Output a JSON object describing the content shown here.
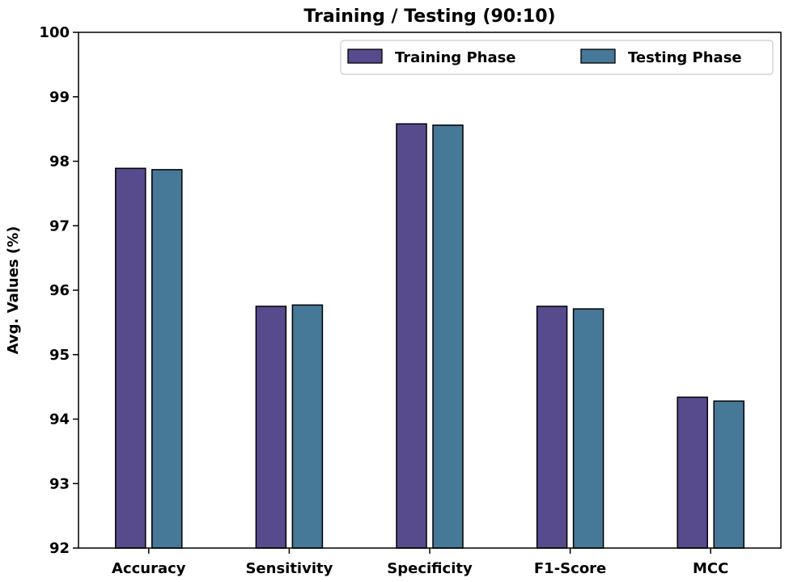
{
  "chart_data": {
    "type": "bar",
    "title": "Training / Testing (90:10)",
    "xlabel": "",
    "ylabel": "Avg. Values (%)",
    "ylim": [
      92,
      100
    ],
    "yticks": [
      92,
      93,
      94,
      95,
      96,
      97,
      98,
      99,
      100
    ],
    "categories": [
      "Accuracy",
      "Sensitivity",
      "Specificity",
      "F1-Score",
      "MCC"
    ],
    "series": [
      {
        "name": "Training Phase",
        "color": "#574a8d",
        "values": [
          97.89,
          95.75,
          98.58,
          95.75,
          94.34
        ]
      },
      {
        "name": "Testing Phase",
        "color": "#467897",
        "values": [
          97.87,
          95.77,
          98.56,
          95.71,
          94.28
        ]
      }
    ],
    "legend_position": "top-right",
    "grid": false
  }
}
